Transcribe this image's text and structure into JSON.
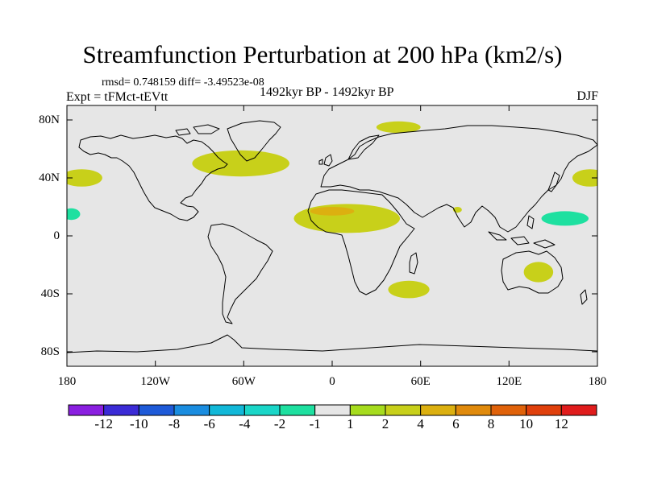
{
  "title": "Streamfunction Perturbation at 200 hPa (km2/s)",
  "stats_text": "rmsd= 0.748159 diff= -3.49523e-08",
  "experiment": "Expt = tFMct-tEVtt",
  "period": "1492kyr BP - 1492kyr BP",
  "season": "DJF",
  "lat_labels": [
    "80N",
    "40N",
    "0",
    "40S",
    "80S"
  ],
  "lon_labels": [
    "180",
    "120W",
    "60W",
    "0",
    "60E",
    "120E",
    "180"
  ],
  "map": {
    "lon_range": [
      -180,
      180
    ],
    "lat_range": [
      -90,
      90
    ],
    "background_color": "#e6e6e6",
    "coastline_color": "#000000"
  },
  "colorbar": {
    "colors": [
      "#8a1fe0",
      "#3b2bd6",
      "#1e5ad8",
      "#1a8de0",
      "#12b8d8",
      "#1ad6c8",
      "#1ee0a0",
      "#e6e6e6",
      "#a6dc1e",
      "#c8d01a",
      "#dcb010",
      "#e08a0c",
      "#e0620a",
      "#e0400c",
      "#e01c1c"
    ],
    "labels": [
      "-12",
      "-10",
      "-8",
      "-6",
      "-4",
      "-2",
      "-1",
      "1",
      "2",
      "4",
      "6",
      "8",
      "10",
      "12"
    ]
  },
  "anomalies": [
    {
      "lon": -170,
      "lat": 40,
      "dlon": 14,
      "dlat": 6,
      "level": 2
    },
    {
      "lon": 175,
      "lat": 40,
      "dlon": 12,
      "dlat": 6,
      "level": 2
    },
    {
      "lon": -163,
      "lat": 15,
      "dlon": 17,
      "dlat": 8,
      "level": -1
    },
    {
      "lon": -177,
      "lat": 15,
      "dlon": 6,
      "dlat": 4,
      "level": -2
    },
    {
      "lon": 153,
      "lat": 12,
      "dlon": 27,
      "dlat": 9,
      "level": -1
    },
    {
      "lon": 158,
      "lat": 12,
      "dlon": 16,
      "dlat": 5,
      "level": -2
    },
    {
      "lon": -145,
      "lat": 53,
      "dlon": 10,
      "dlat": 5,
      "level": -1
    },
    {
      "lon": -62,
      "lat": 50,
      "dlon": 33,
      "dlat": 9,
      "level": 2
    },
    {
      "lon": -20,
      "lat": 28,
      "dlon": 43,
      "dlat": 7,
      "level": -1
    },
    {
      "lon": 45,
      "lat": 75,
      "dlon": 15,
      "dlat": 4,
      "level": 2
    },
    {
      "lon": 10,
      "lat": 12,
      "dlon": 36,
      "dlat": 10,
      "level": 2
    },
    {
      "lon": 0,
      "lat": 17,
      "dlon": 15,
      "dlat": 3,
      "level": 4
    },
    {
      "lon": -128,
      "lat": 0,
      "dlon": 5,
      "dlat": 3,
      "level": -1
    },
    {
      "lon": -145,
      "lat": -11,
      "dlon": 8,
      "dlat": 3,
      "level": -1
    },
    {
      "lon": -170,
      "lat": -22,
      "dlon": 4,
      "dlat": 3,
      "level": -1
    },
    {
      "lon": -68,
      "lat": -22,
      "dlon": 36,
      "dlat": 9,
      "level": -1
    },
    {
      "lon": 52,
      "lat": -37,
      "dlon": 14,
      "dlat": 6,
      "level": 2
    },
    {
      "lon": 140,
      "lat": -25,
      "dlon": 10,
      "dlat": 7,
      "level": 2
    },
    {
      "lon": 85,
      "lat": 18,
      "dlon": 3,
      "dlat": 2,
      "level": 2
    }
  ]
}
